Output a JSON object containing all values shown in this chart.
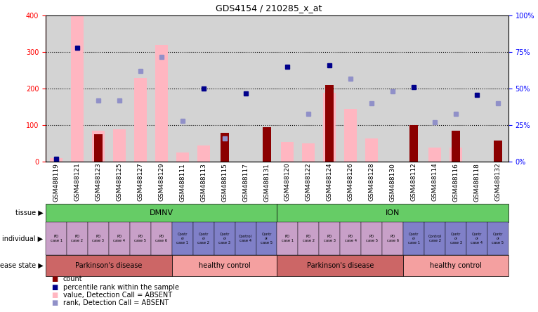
{
  "title": "GDS4154 / 210285_x_at",
  "samples": [
    "GSM488119",
    "GSM488121",
    "GSM488123",
    "GSM488125",
    "GSM488127",
    "GSM488129",
    "GSM488111",
    "GSM488113",
    "GSM488115",
    "GSM488117",
    "GSM488131",
    "GSM488120",
    "GSM488122",
    "GSM488124",
    "GSM488126",
    "GSM488128",
    "GSM488130",
    "GSM488112",
    "GSM488114",
    "GSM488116",
    "GSM488118",
    "GSM488132"
  ],
  "count_values": [
    0,
    0,
    75,
    0,
    0,
    0,
    0,
    0,
    80,
    0,
    95,
    0,
    0,
    210,
    0,
    0,
    0,
    100,
    0,
    85,
    0,
    58
  ],
  "value_absent": [
    10,
    400,
    85,
    90,
    230,
    320,
    25,
    45,
    0,
    0,
    0,
    55,
    50,
    190,
    145,
    65,
    0,
    0,
    40,
    40,
    0,
    0
  ],
  "rank_absent_pct": [
    1,
    0,
    42,
    42,
    62,
    72,
    28,
    0,
    16,
    0,
    0,
    0,
    33,
    0,
    57,
    40,
    48,
    0,
    27,
    33,
    0,
    40
  ],
  "percentile_rank": [
    2,
    78,
    0,
    0,
    0,
    0,
    0,
    50,
    0,
    47,
    0,
    65,
    0,
    66,
    0,
    0,
    0,
    51,
    0,
    0,
    46,
    0
  ],
  "tissue_groups": [
    {
      "label": "DMNV",
      "start": 0,
      "end": 11,
      "color": "#66CC66"
    },
    {
      "label": "ION",
      "start": 11,
      "end": 22,
      "color": "#66CC66"
    }
  ],
  "individual_labels": [
    "PD\ncase 1",
    "PD\ncase 2",
    "PD\ncase 3",
    "PD\ncase 4",
    "PD\ncase 5",
    "PD\ncase 6",
    "Contr\nol\ncase 1",
    "Contr\nol\ncase 2",
    "Contr\nol\ncase 3",
    "Control\ncase 4",
    "Contr\nol\ncase 5",
    "PD\ncase 1",
    "PD\ncase 2",
    "PD\ncase 3",
    "PD\ncase 4",
    "PD\ncase 5",
    "PD\ncase 6",
    "Contr\nol\ncase 1",
    "Control\ncase 2",
    "Contr\nol\ncase 3",
    "Contr\nol\ncase 4",
    "Contr\nol\ncase 5"
  ],
  "individual_colors": [
    "#C8A0C8",
    "#C8A0C8",
    "#C8A0C8",
    "#C8A0C8",
    "#C8A0C8",
    "#C8A0C8",
    "#8080C8",
    "#8080C8",
    "#8080C8",
    "#8080C8",
    "#8080C8",
    "#C8A0C8",
    "#C8A0C8",
    "#C8A0C8",
    "#C8A0C8",
    "#C8A0C8",
    "#C8A0C8",
    "#8080C8",
    "#8080C8",
    "#8080C8",
    "#8080C8",
    "#8080C8"
  ],
  "disease_groups": [
    {
      "label": "Parkinson's disease",
      "start": 0,
      "end": 6,
      "color": "#CC6666"
    },
    {
      "label": "healthy control",
      "start": 6,
      "end": 11,
      "color": "#F4A0A0"
    },
    {
      "label": "Parkinson's disease",
      "start": 11,
      "end": 17,
      "color": "#CC6666"
    },
    {
      "label": "healthy control",
      "start": 17,
      "end": 22,
      "color": "#F4A0A0"
    }
  ],
  "ylim_left": [
    0,
    400
  ],
  "ylim_right": [
    0,
    100
  ],
  "yticks_left": [
    0,
    100,
    200,
    300,
    400
  ],
  "ytick_labels_left": [
    "0",
    "100",
    "200",
    "300",
    "400"
  ],
  "yticks_right": [
    0,
    25,
    50,
    75,
    100
  ],
  "ytick_labels_right": [
    "0%",
    "25%",
    "50%",
    "75%",
    "100%"
  ],
  "bar_color_count": "#8B0000",
  "bar_color_absent": "#FFB6C1",
  "dot_color_rank": "#00008B",
  "dot_color_absent_rank": "#9090C8",
  "bg_color": "#D3D3D3",
  "plot_bg": "#D3D3D3"
}
